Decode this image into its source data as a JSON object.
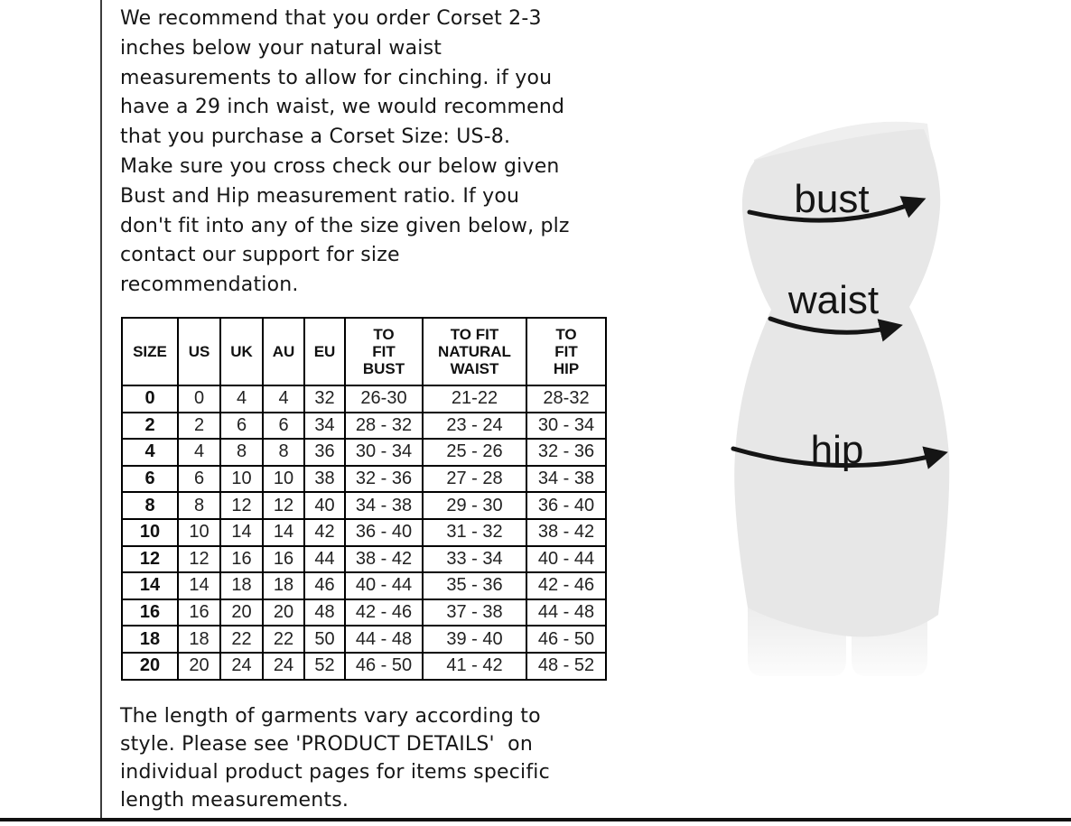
{
  "intro": {
    "lines": [
      "We recommend that you order Corset 2-3",
      "inches below your natural waist",
      "measurements to allow for cinching. if you",
      "have a 29 inch waist, we would recommend",
      "that you purchase a Corset Size: US-8.",
      "Make sure you cross check our below given",
      "Bust and Hip measurement ratio. If you",
      "don't fit into any of the size given below, plz",
      "contact our support for size",
      "recommendation."
    ]
  },
  "table": {
    "headers": [
      "SIZE",
      "US",
      "UK",
      "AU",
      "EU",
      "TO\nFIT\nBUST",
      "TO FIT\nNATURAL\nWAIST",
      "TO\nFIT\nHIP"
    ],
    "rows": [
      [
        "0",
        "0",
        "4",
        "4",
        "32",
        "26-30",
        "21-22",
        "28-32"
      ],
      [
        "2",
        "2",
        "6",
        "6",
        "34",
        "28 - 32",
        "23 - 24",
        "30 - 34"
      ],
      [
        "4",
        "4",
        "8",
        "8",
        "36",
        "30 - 34",
        "25 - 26",
        "32 - 36"
      ],
      [
        "6",
        "6",
        "10",
        "10",
        "38",
        "32 - 36",
        "27 - 28",
        "34 - 38"
      ],
      [
        "8",
        "8",
        "12",
        "12",
        "40",
        "34 - 38",
        "29 - 30",
        "36 - 40"
      ],
      [
        "10",
        "10",
        "14",
        "14",
        "42",
        "36 - 40",
        "31 - 32",
        "38 - 42"
      ],
      [
        "12",
        "12",
        "16",
        "16",
        "44",
        "38 - 42",
        "33 - 34",
        "40 - 44"
      ],
      [
        "14",
        "14",
        "18",
        "18",
        "46",
        "40 - 44",
        "35 - 36",
        "42 - 46"
      ],
      [
        "16",
        "16",
        "20",
        "20",
        "48",
        "42 - 46",
        "37 - 38",
        "44 - 48"
      ],
      [
        "18",
        "18",
        "22",
        "22",
        "50",
        "44 - 48",
        "39 - 40",
        "46 - 50"
      ],
      [
        "20",
        "20",
        "24",
        "24",
        "52",
        "46 - 50",
        "41 - 42",
        "48 - 52"
      ]
    ]
  },
  "footer": {
    "lines": [
      "The length of garments vary according to",
      "style. Please see 'PRODUCT DETAILS'  on",
      "individual product pages for items specific",
      "length measurements."
    ]
  },
  "diagram": {
    "labels": {
      "bust": "bust",
      "waist": "waist",
      "hip": "hip"
    }
  },
  "colors": {
    "text": "#161616",
    "table_border": "#000000",
    "figure_fill": "#e7e7e7",
    "arrow": "#151515"
  }
}
